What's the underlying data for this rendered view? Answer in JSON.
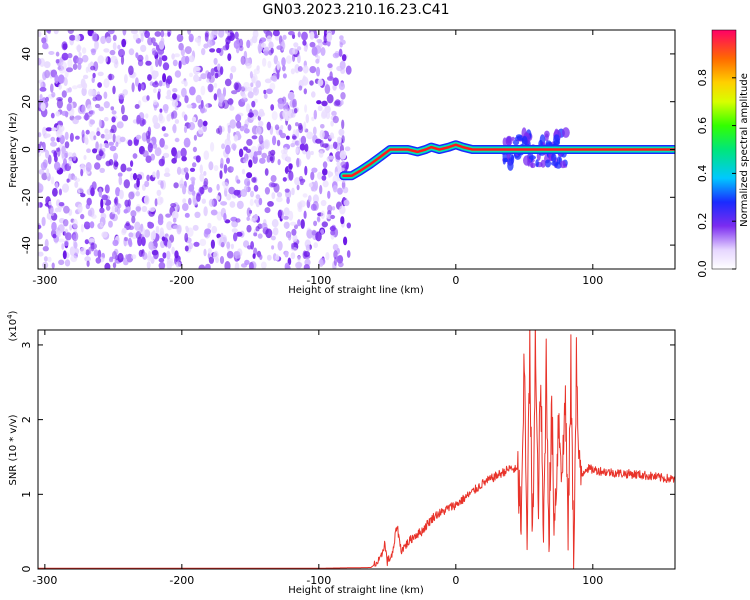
{
  "title": "GN03.2023.210.16.23.C41",
  "colors": {
    "signal": "#e8332a",
    "scatter": "#7b2cf0",
    "axis": "#000000",
    "background": "#ffffff"
  },
  "chart_data": [
    {
      "type": "heatmap",
      "xlabel": "Height of straight line (km)",
      "ylabel": "Frequency (Hz)",
      "xlim": [
        -305,
        160
      ],
      "ylim": [
        -50,
        50
      ],
      "x_ticks": [
        -300,
        -200,
        -100,
        0,
        100
      ],
      "y_ticks": [
        -40,
        -20,
        0,
        20,
        40
      ],
      "noise_region_x": [
        -305,
        -78
      ],
      "ridge": {
        "x": [
          -82,
          -76,
          -70,
          -62,
          -55,
          -48,
          -42,
          -35,
          -28,
          -22,
          -18,
          -12,
          -5,
          0,
          5,
          12,
          18,
          25,
          30,
          40,
          50,
          60,
          70,
          80,
          100,
          120,
          140,
          160
        ],
        "y": [
          -11,
          -11,
          -9,
          -6,
          -3,
          0,
          0,
          0,
          -1,
          0,
          1,
          0,
          1,
          2,
          1,
          0,
          0,
          0,
          0,
          0,
          0,
          0,
          0,
          0,
          0,
          0,
          0,
          0
        ]
      },
      "bursts_x": [
        40,
        52,
        65,
        75
      ],
      "colorbar": {
        "label": "Normalized spectral amplitude",
        "ticks": [
          0.0,
          0.2,
          0.4,
          0.6,
          0.8
        ],
        "tick_labels": [
          "0.0",
          "0.2",
          "0.4",
          "0.6",
          "0.8"
        ],
        "range": [
          0,
          1
        ]
      }
    },
    {
      "type": "line",
      "xlabel": "Height of straight line (km)",
      "ylabel": "SNR (10 * v/v)",
      "scale_label": "(x10^4)",
      "xlim": [
        -305,
        160
      ],
      "ylim": [
        0,
        3.2
      ],
      "x_ticks": [
        -300,
        -200,
        -100,
        0,
        100
      ],
      "y_ticks": [
        0,
        1,
        2,
        3
      ],
      "series": [
        {
          "x": [
            -305,
            -200,
            -100,
            -62,
            -55,
            -52,
            -50,
            -46,
            -43,
            -40,
            -35,
            -30,
            -25,
            -20,
            -15,
            -10,
            -5,
            0,
            10,
            20,
            30,
            40,
            45,
            48,
            50,
            52,
            54,
            56,
            58,
            60,
            62,
            64,
            66,
            68,
            70,
            72,
            75,
            78,
            80,
            82,
            84,
            86,
            88,
            90,
            95,
            100,
            110,
            120,
            130,
            140,
            150,
            160
          ],
          "y": [
            0.01,
            0.01,
            0.01,
            0.02,
            0.12,
            0.35,
            0.1,
            0.2,
            0.6,
            0.25,
            0.35,
            0.45,
            0.5,
            0.62,
            0.72,
            0.76,
            0.82,
            0.86,
            1.0,
            1.15,
            1.25,
            1.35,
            1.32,
            0.6,
            2.8,
            0.5,
            2.9,
            0.2,
            3.1,
            0.8,
            2.5,
            0.3,
            2.8,
            0.5,
            2.1,
            0.6,
            2.0,
            1.3,
            2.4,
            0.4,
            2.7,
            0.1,
            2.8,
            1.2,
            1.35,
            1.33,
            1.3,
            1.28,
            1.27,
            1.25,
            1.22,
            1.2
          ]
        }
      ]
    }
  ]
}
